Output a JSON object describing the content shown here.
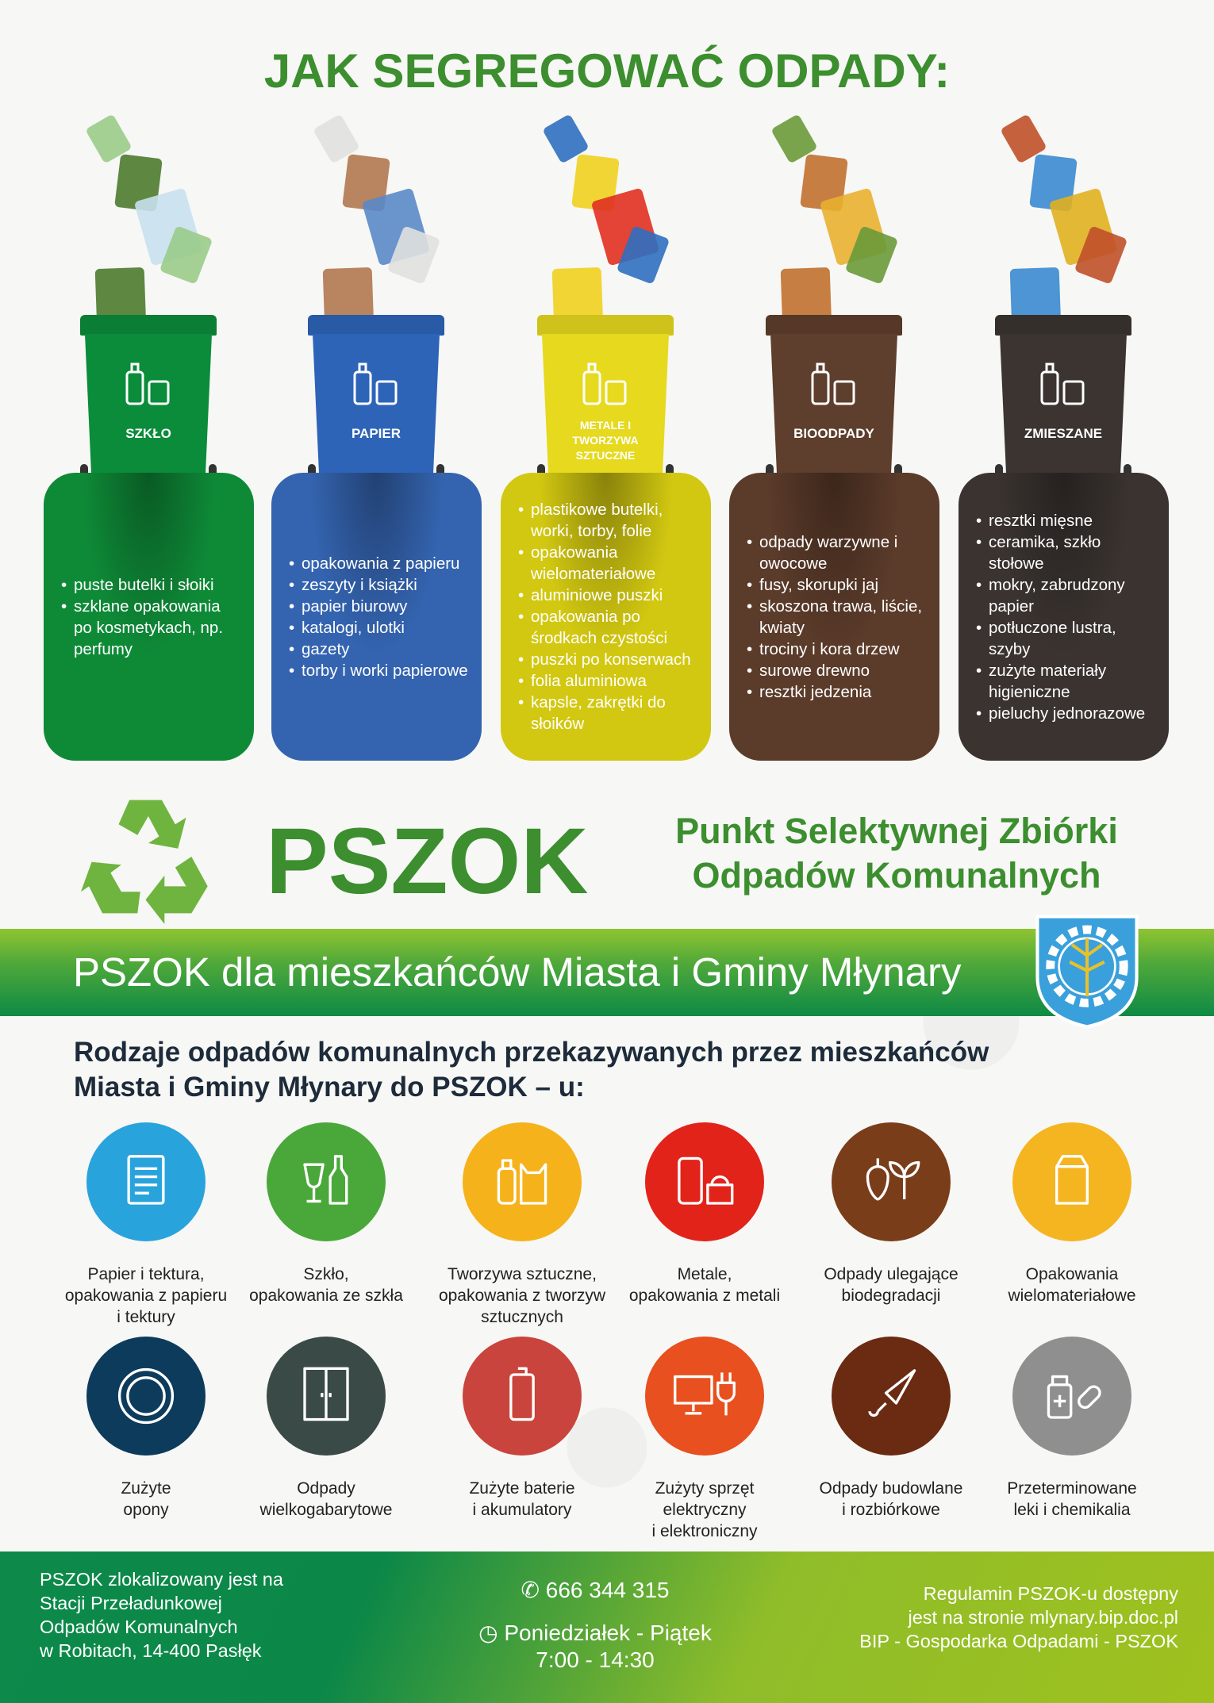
{
  "title": "JAK SEGREGOWAĆ ODPADY:",
  "bins": [
    {
      "label": "SZKŁO",
      "color": "#0a8c3a",
      "card_color": "#0e8a37",
      "icon": "bottle-jar-icon",
      "items": [
        "puste butelki i słoiki",
        "szklane opakowania po kosmetykach, np. perfumy"
      ]
    },
    {
      "label": "PAPIER",
      "color": "#2d64b8",
      "card_color": "#3464b0",
      "icon": "paper-carton-icon",
      "items": [
        "opakowania z papieru",
        "zeszyty i książki",
        "papier biurowy",
        "katalogi, ulotki",
        "gazety",
        "torby i worki papierowe"
      ]
    },
    {
      "label": "METALE I TWORZYWA SZTUCZNE",
      "color": "#e6d91e",
      "card_color": "#d2c811",
      "icon": "bottle-can-icon",
      "items": [
        "plastikowe butelki, worki, torby, folie",
        "opakowania wielomateriałowe",
        "aluminiowe puszki",
        "opakowania po środkach czystości",
        "puszki po konserwach",
        "folia aluminiowa",
        "kapsle, zakrętki do słoików"
      ]
    },
    {
      "label": "BIOODPADY",
      "color": "#5e3e2c",
      "card_color": "#5b3b2a",
      "icon": "apple-leaf-icon",
      "items": [
        "odpady warzywne i owocowe",
        "fusy, skorupki jaj",
        "skoszona trawa, liście, kwiaty",
        "trociny i kora drzew",
        "surowe drewno",
        "resztki jedzenia"
      ]
    },
    {
      "label": "ZMIESZANE",
      "color": "#3b3430",
      "card_color": "#3a3330",
      "icon": "no-recycle-icon",
      "items": [
        "resztki mięsne",
        "ceramika, szkło stołowe",
        "mokry, zabrudzony papier",
        "potłuczone lustra, szyby",
        "zużyte materiały higieniczne",
        "pieluchy jednorazowe"
      ]
    }
  ],
  "pszok": {
    "logo": "PSZOK",
    "subtitle_line1": "Punkt Selektywnej Zbiórki",
    "subtitle_line2": "Odpadów Komunalnych",
    "icon": "recycle-icon",
    "brand_color": "#3c8e2f"
  },
  "band": {
    "text": "PSZOK dla mieszkańców Miasta i Gminy Młynary",
    "coat_of_arms": "coat-of-arms-mlynary"
  },
  "heading": {
    "line1": "Rodzaje odpadów komunalnych przekazywanych przez mieszkańców",
    "line2": "Miasta i Gminy Młynary do PSZOK – u:"
  },
  "categories": [
    {
      "label": "Papier i tektura,\nopakowania z papieru\ni tektury",
      "color": "#29a3dc",
      "icon": "document-icon"
    },
    {
      "label": "Szkło,\nopakowania ze szkła",
      "color": "#4aa83a",
      "icon": "glass-bottle-icon"
    },
    {
      "label": "Tworzywa sztuczne,\nopakowania z tworzyw\nsztucznych",
      "color": "#f5b21a",
      "icon": "plastic-bottle-bag-icon"
    },
    {
      "label": "Metale,\nopakowania z metali",
      "color": "#e2231a",
      "icon": "can-icon"
    },
    {
      "label": "Odpady ulegające\nbiodegradacji",
      "color": "#7a3d1a",
      "icon": "apple-leaf-icon"
    },
    {
      "label": "Opakowania\nwielomateriałowe",
      "color": "#f5b520",
      "icon": "carton-icon"
    },
    {
      "label": "Zużyte\nopony",
      "color": "#0c3b5c",
      "icon": "tire-icon"
    },
    {
      "label": "Odpady\nwielkogabarytowe",
      "color": "#3a4a46",
      "icon": "wardrobe-icon"
    },
    {
      "label": "Zużyte baterie\ni akumulatory",
      "color": "#c9443c",
      "icon": "battery-icon"
    },
    {
      "label": "Zużyty sprzęt\nelektryczny\ni elektroniczny",
      "color": "#e8501f",
      "icon": "computer-plug-icon"
    },
    {
      "label": "Odpady budowlane\ni rozbiórkowe",
      "color": "#6b2a12",
      "icon": "trowel-icon"
    },
    {
      "label": "Przeterminowane\nleki i chemikalia",
      "color": "#8f8f8f",
      "icon": "medicine-icon"
    }
  ],
  "footer": {
    "left": [
      "PSZOK zlokalizowany jest na",
      "Stacji Przeładunkowej",
      "Odpadów Komunalnych",
      "w Robitach, 14-400 Pasłęk"
    ],
    "phone": "666 344 315",
    "days": "Poniedziałek - Piątek",
    "hours": "7:00 - 14:30",
    "right": [
      "Regulamin PSZOK-u dostępny",
      "jest na stronie mlynary.bip.doc.pl",
      "BIP - Gospodarka Odpadami - PSZOK"
    ]
  }
}
